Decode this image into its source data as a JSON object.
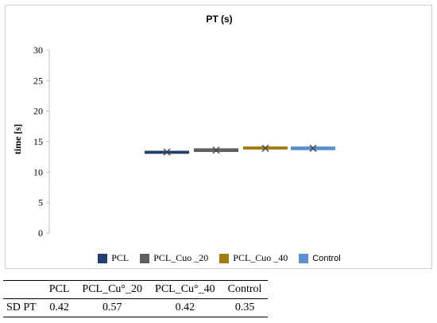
{
  "colors": {
    "PCL": "#1f3f6e",
    "PCL_Cuo_20": "#5f5f5f",
    "PCL_Cuo_40": "#a37a10",
    "Control": "#5b8fcf",
    "marker": "#4a4a4a",
    "gridline": "#d9d9d9"
  },
  "chart_data": {
    "type": "box",
    "title": "PT (s)",
    "ylabel": "time [s]",
    "xlabel": "",
    "ylim": [
      0,
      30
    ],
    "yticks": [
      0,
      5,
      10,
      15,
      20,
      25,
      30
    ],
    "grid": false,
    "legend_position": "bottom",
    "series": [
      {
        "name": "PCL",
        "legend_label": "PCL",
        "q1": 13.0,
        "q3": 13.5,
        "mean": 13.3,
        "marker": "x"
      },
      {
        "name": "PCL_Cuo _20",
        "legend_label": "PCL_Cuo _20",
        "q1": 13.3,
        "q3": 13.9,
        "mean": 13.6,
        "marker": "x"
      },
      {
        "name": "PCL_Cuo _40",
        "legend_label": "PCL_Cuo _40",
        "q1": 13.7,
        "q3": 14.2,
        "mean": 13.9,
        "marker": "x"
      },
      {
        "name": "Control",
        "legend_label": "Control",
        "q1": 13.6,
        "q3": 14.2,
        "mean": 13.9,
        "marker": "x"
      }
    ]
  },
  "table": {
    "headers": [
      "",
      "PCL",
      "PCL_Cu°_20",
      "PCL_Cu°_40",
      "Control"
    ],
    "rows": [
      [
        "SD PT",
        "0.42",
        "0.57",
        "0.42",
        "0.35"
      ]
    ]
  }
}
